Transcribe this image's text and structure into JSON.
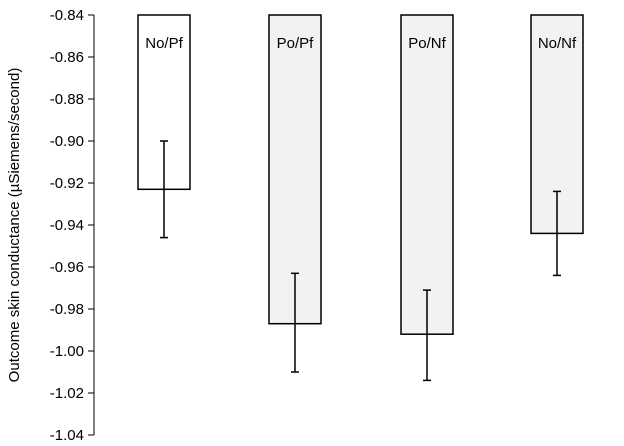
{
  "chart_data": {
    "type": "bar",
    "title": "",
    "xlabel": "",
    "ylabel": "Outcome skin conductance (µSiemens/second)",
    "ylim": [
      -1.04,
      -0.84
    ],
    "yticks": [
      "-0.84",
      "-0.86",
      "-0.88",
      "-0.90",
      "-0.92",
      "-0.94",
      "-0.96",
      "-0.98",
      "-1.00",
      "-1.02",
      "-1.04"
    ],
    "categories": [
      "No/Pf",
      "Po/Pf",
      "Po/Nf",
      "No/Nf"
    ],
    "values": [
      -0.923,
      -0.987,
      -0.992,
      -0.944
    ],
    "error_low": [
      -0.946,
      -1.01,
      -1.014,
      -0.964
    ],
    "error_high": [
      -0.9,
      -0.963,
      -0.971,
      -0.924
    ],
    "fills": [
      "#ffffff",
      "#f2f2f2",
      "#f2f2f2",
      "#f2f2f2"
    ],
    "bar_stroke": "#000000",
    "grid": false
  }
}
